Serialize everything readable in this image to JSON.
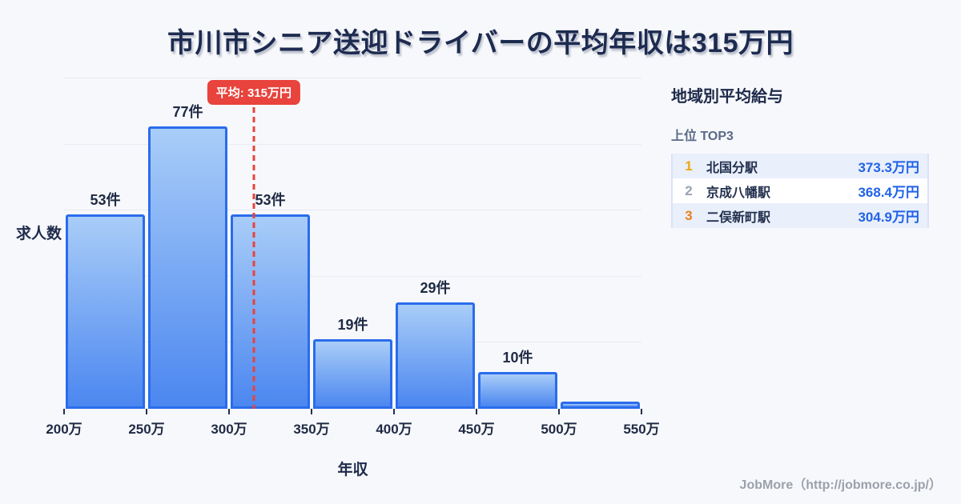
{
  "title": "市川市シニア送迎ドライバーの平均年収は315万円",
  "chart_data": {
    "type": "bar",
    "subtype": "histogram",
    "title": "市川市シニア送迎ドライバーの平均年収は315万円",
    "xlabel": "年収",
    "ylabel": "求人数",
    "x_tick_labels": [
      "200万",
      "250万",
      "300万",
      "350万",
      "400万",
      "450万",
      "500万",
      "550万"
    ],
    "x_range": [
      200,
      550
    ],
    "bin_width": 50,
    "values": [
      53,
      77,
      53,
      19,
      29,
      10,
      2
    ],
    "bar_labels": [
      "53件",
      "77件",
      "53件",
      "19件",
      "29件",
      "10件",
      ""
    ],
    "unit": "件",
    "ylim": [
      0,
      90
    ],
    "gridline_values": [
      18,
      36,
      54,
      72,
      90
    ],
    "grid": "horizontal",
    "legend": "none",
    "average": {
      "value": 315,
      "label": "平均: 315万円"
    }
  },
  "panel": {
    "heading": "地域別平均給与",
    "subheading": "上位 TOP3",
    "rows": [
      {
        "rank": "1",
        "station": "北国分駅",
        "value": "373.3万円"
      },
      {
        "rank": "2",
        "station": "京成八幡駅",
        "value": "368.4万円"
      },
      {
        "rank": "3",
        "station": "二俣新町駅",
        "value": "304.9万円"
      }
    ]
  },
  "footer": {
    "credit": "JobMore（http://jobmore.co.jp/）"
  },
  "colors": {
    "background": "#f7f8fb",
    "title_text": "#1d2b50",
    "bar_fill_top": "#a9cdf8",
    "bar_fill_bottom": "#4c87f0",
    "bar_border": "#2a6cec",
    "average_red": "#e8433c",
    "value_blue": "#2163e8",
    "rank1_gold": "#f0a512",
    "rank2_gray": "#98a2b3",
    "rank3_orange": "#ec7f1d",
    "row_highlight": "#e9effb",
    "gridline": "#e8ebf3",
    "tick_dark": "#27304c",
    "footer_gray": "#9ba1ab"
  }
}
